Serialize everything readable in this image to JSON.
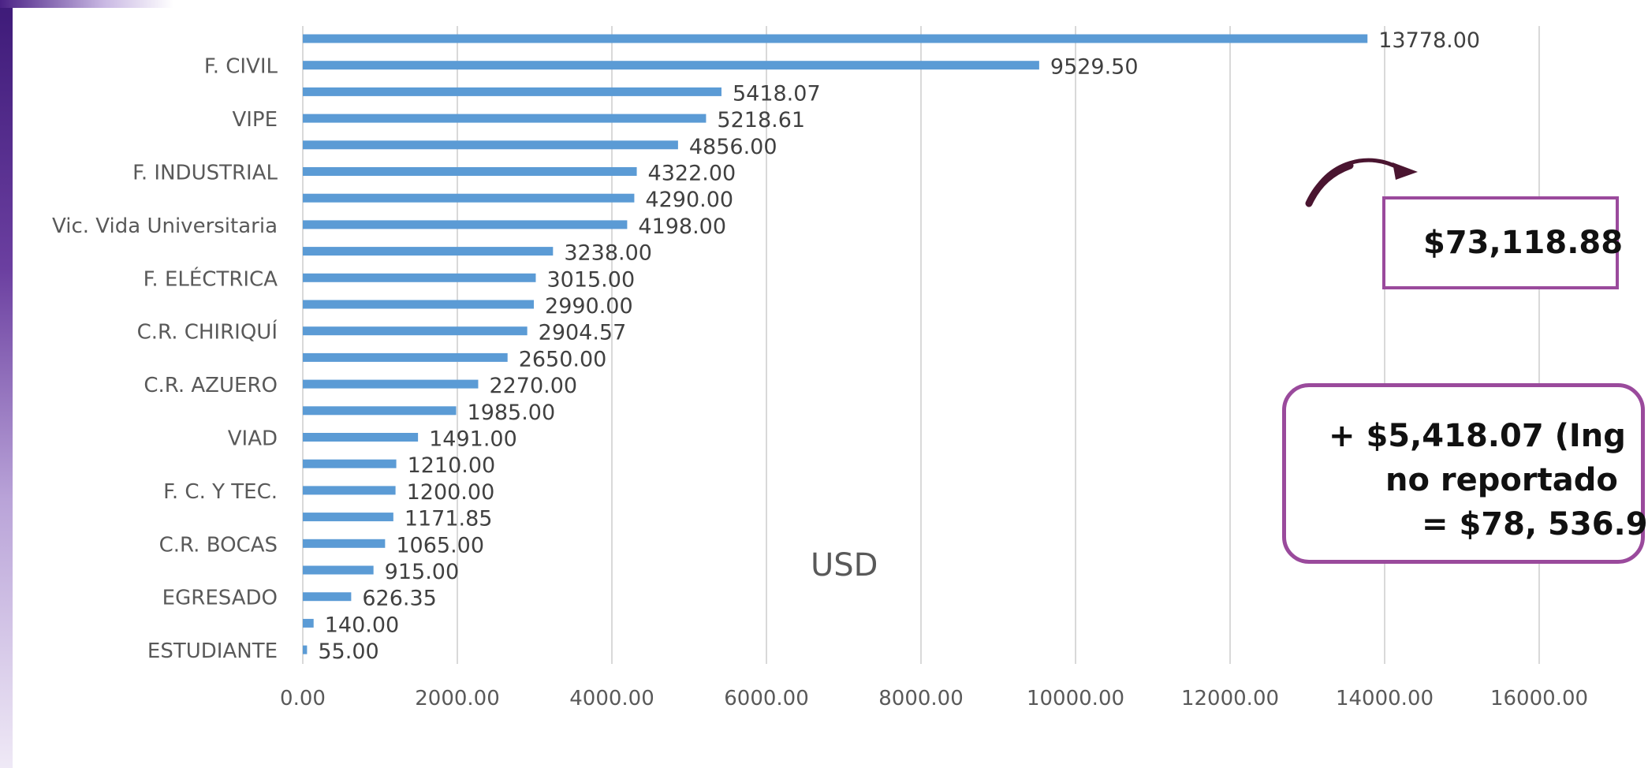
{
  "chart_data": {
    "type": "bar",
    "orientation": "horizontal",
    "categories": [
      "",
      "F. CIVIL",
      "",
      "VIPE",
      "",
      "F. INDUSTRIAL",
      "",
      "Vic. Vida Universitaria",
      "",
      "F. ELÉCTRICA",
      "",
      "C.R. CHIRIQUÍ",
      "",
      "C.R. AZUERO",
      "",
      "VIAD",
      "",
      "F. C. Y TEC.",
      "",
      "C.R. BOCAS",
      "",
      "EGRESADO",
      "",
      "ESTUDIANTE"
    ],
    "values": [
      13778.0,
      9529.5,
      5418.07,
      5218.61,
      4856.0,
      4322.0,
      4290.0,
      4198.0,
      3238.0,
      3015.0,
      2990.0,
      2904.57,
      2650.0,
      2270.0,
      1985.0,
      1491.0,
      1210.0,
      1200.0,
      1171.85,
      1065.0,
      915.0,
      626.35,
      140.0,
      55.0
    ],
    "data_labels": [
      "13778.00",
      "9529.50",
      "5418.07",
      "5218.61",
      "4856.00",
      "4322.00",
      "4290.00",
      "4198.00",
      "3238.00",
      "3015.00",
      "2990.00",
      "2904.57",
      "2650.00",
      "2270.00",
      "1985.00",
      "1491.00",
      "1210.00",
      "1200.00",
      "1171.85",
      "1065.00",
      "915.00",
      "626.35",
      "140.00",
      "55.00"
    ],
    "x_ticks": [
      "0.00",
      "2000.00",
      "4000.00",
      "6000.00",
      "8000.00",
      "10000.00",
      "12000.00",
      "14000.00",
      "16000.00"
    ],
    "xlim": [
      0,
      16000
    ],
    "xlabel": "",
    "ylabel": "",
    "grid": true,
    "bar_color": "#5b9bd5"
  },
  "annotations": {
    "unit": "USD",
    "total": "$73,118.88",
    "extra_line1": "+ $5,418.07 (Ing",
    "extra_line2": "no reportado",
    "extra_line3": "= $78, 536.9"
  },
  "colors": {
    "accent": "#9a4a9c",
    "arrow": "#4a1530",
    "grid": "#d9d9d9"
  }
}
